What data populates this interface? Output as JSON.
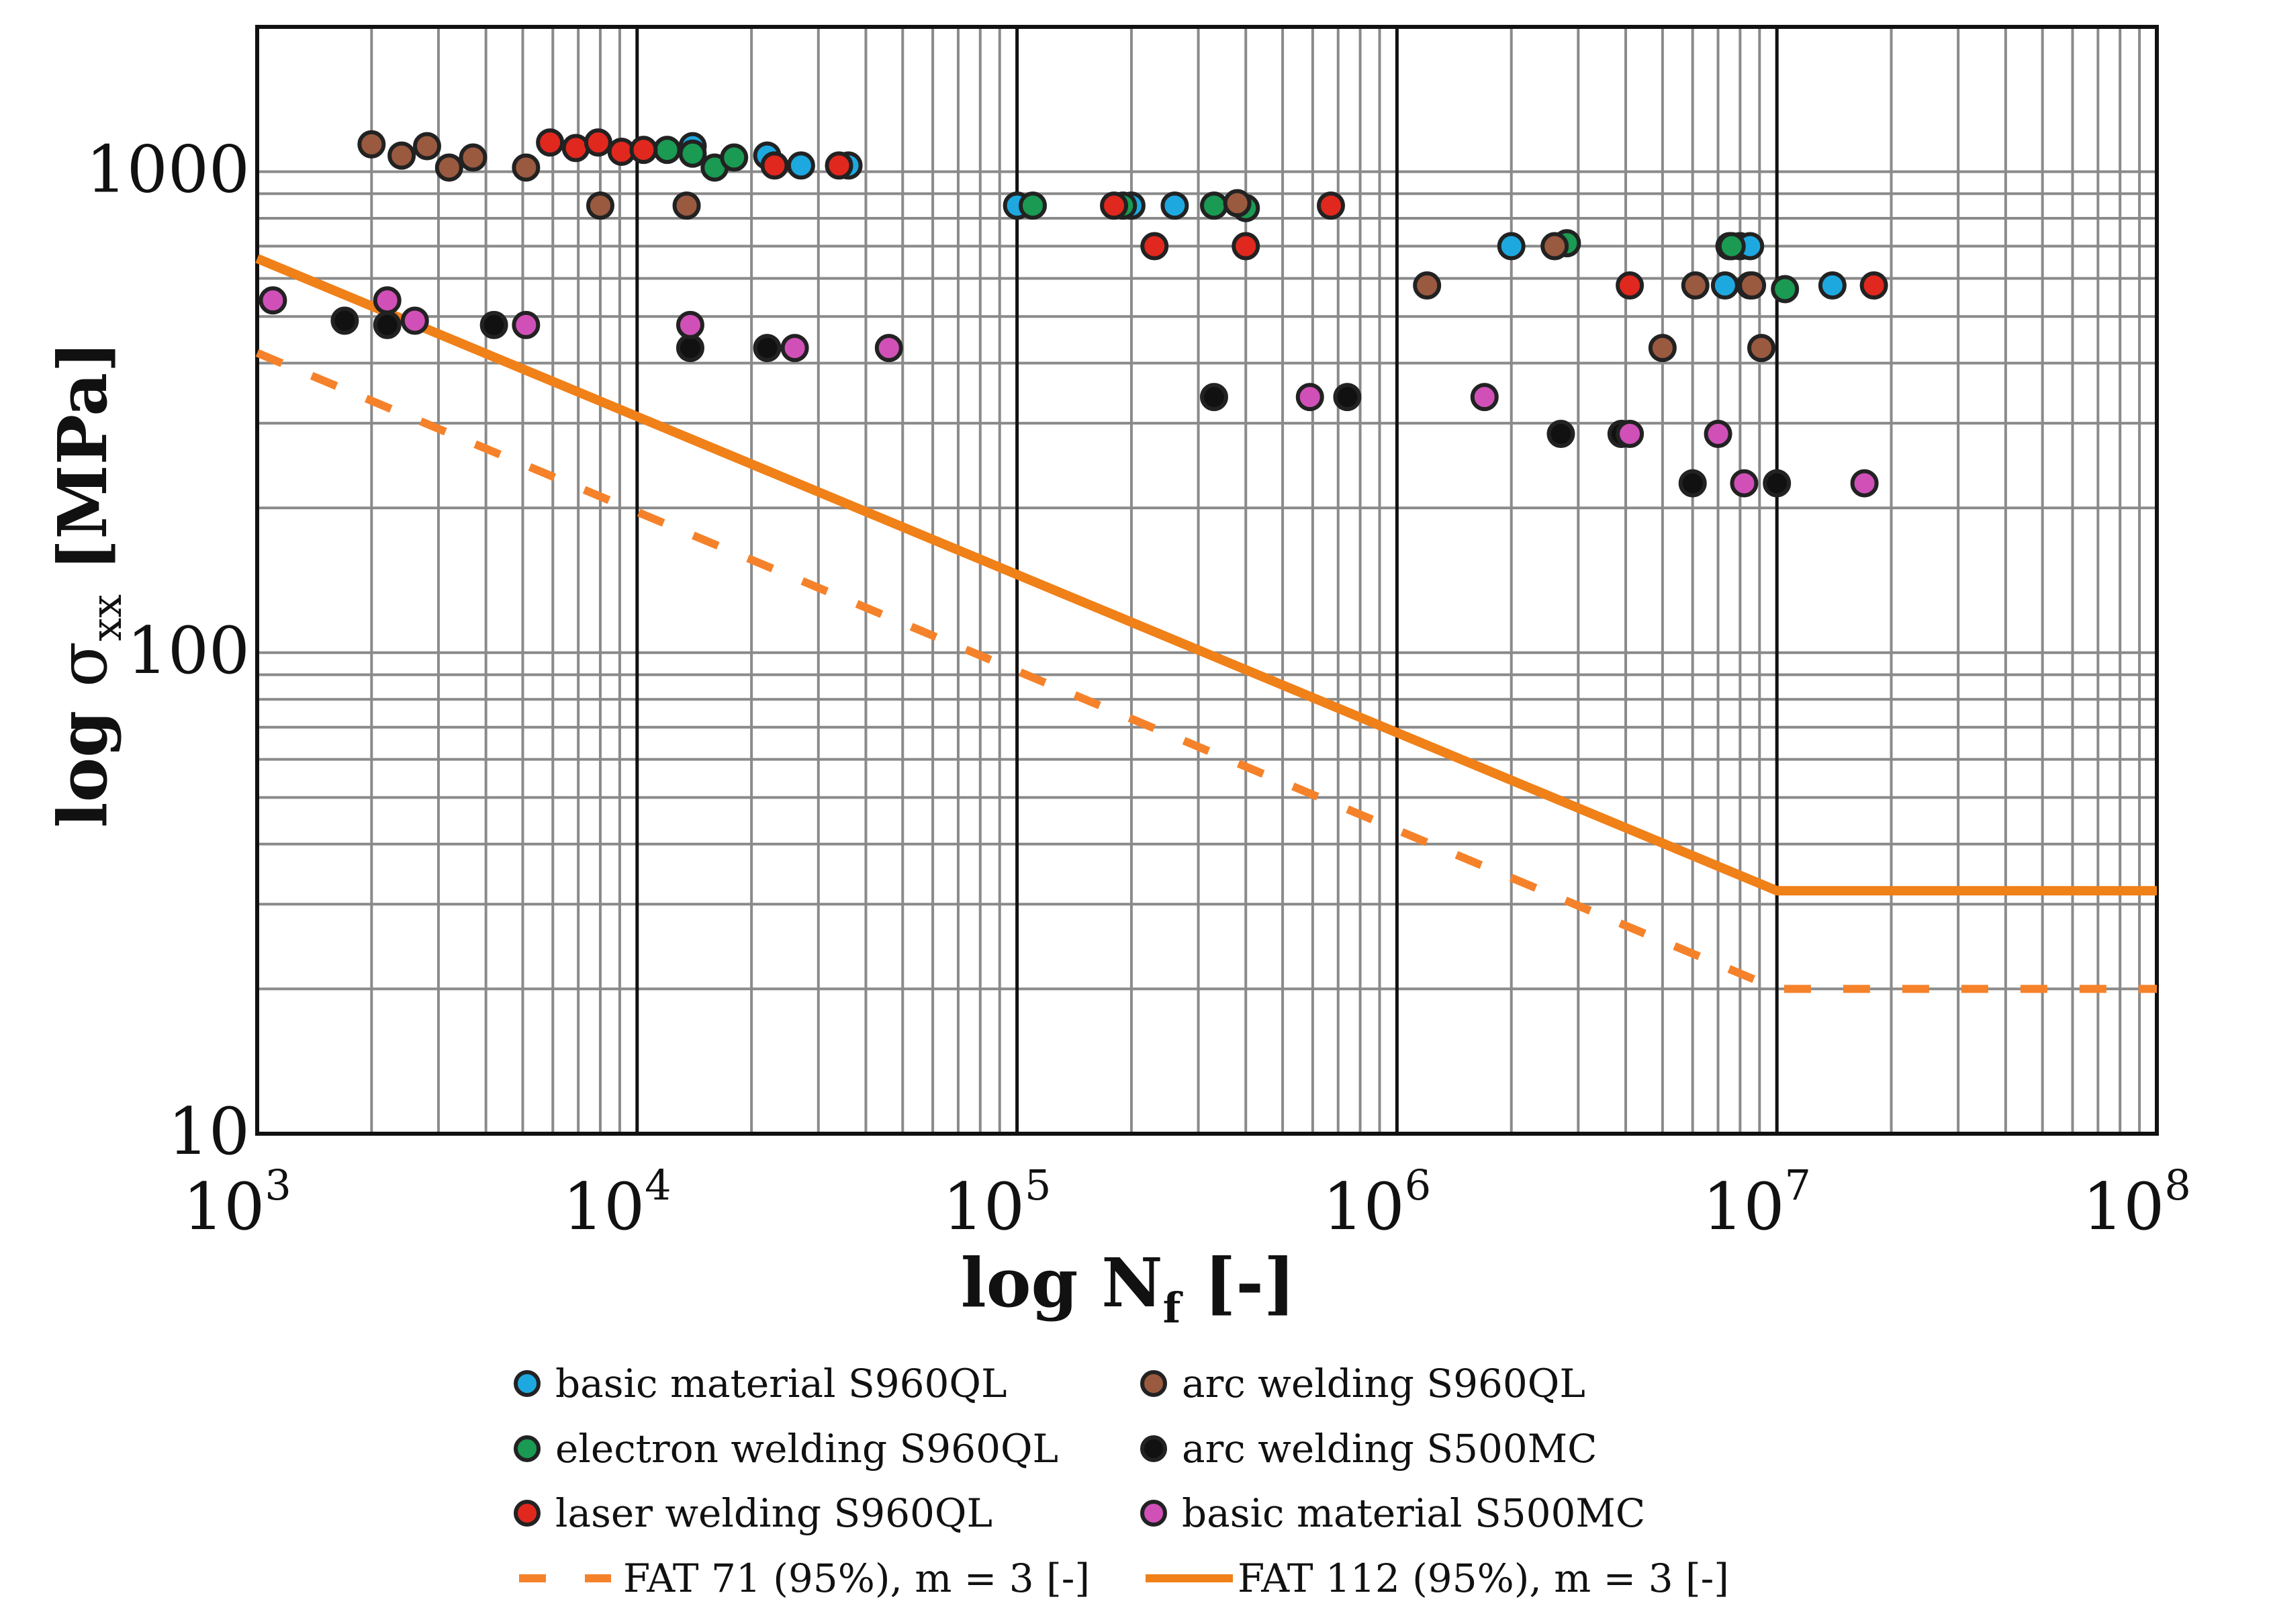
{
  "chart_data": {
    "type": "scatter",
    "title": "",
    "x_scale": "log",
    "y_scale": "log",
    "xlim": [
      1000,
      100000000
    ],
    "ylim": [
      10,
      2000
    ],
    "grid": true,
    "legend_position": "bottom",
    "xlabel": {
      "prefix": "log ",
      "symbol": "N",
      "subscript": "f",
      "suffix": " [-]"
    },
    "ylabel": {
      "prefix": "log ",
      "symbol": "σ",
      "subscript": "xx",
      "suffix": " [MPa]"
    },
    "x_ticks": [
      {
        "value": 1000,
        "base": "10",
        "exp": "3"
      },
      {
        "value": 10000,
        "base": "10",
        "exp": "4"
      },
      {
        "value": 100000,
        "base": "10",
        "exp": "5"
      },
      {
        "value": 1000000,
        "base": "10",
        "exp": "6"
      },
      {
        "value": 10000000,
        "base": "10",
        "exp": "7"
      },
      {
        "value": 100000000,
        "base": "10",
        "exp": "8"
      }
    ],
    "y_ticks": [
      {
        "value": 10,
        "label": "10"
      },
      {
        "value": 100,
        "label": "100"
      },
      {
        "value": 1000,
        "label": "1000"
      }
    ],
    "series": [
      {
        "name": "basic material S960QL",
        "color": "#1ea8e0",
        "marker": "circle",
        "points": [
          [
            14000,
            1130
          ],
          [
            22000,
            1080
          ],
          [
            27000,
            1030
          ],
          [
            36000,
            1030
          ],
          [
            100000,
            850
          ],
          [
            200000,
            850
          ],
          [
            260000,
            850
          ],
          [
            2000000,
            700
          ],
          [
            7300000,
            580
          ],
          [
            8000000,
            700
          ],
          [
            14000000,
            580
          ],
          [
            8500000,
            700
          ],
          [
            7500000,
            700
          ]
        ]
      },
      {
        "name": "electron welding S960QL",
        "color": "#1a9a52",
        "marker": "circle",
        "points": [
          [
            12000,
            1110
          ],
          [
            14000,
            1090
          ],
          [
            16000,
            1020
          ],
          [
            18000,
            1070
          ],
          [
            110000,
            850
          ],
          [
            190000,
            850
          ],
          [
            330000,
            850
          ],
          [
            400000,
            840
          ],
          [
            2800000,
            710
          ],
          [
            7600000,
            700
          ],
          [
            8500000,
            580
          ],
          [
            10500000,
            570
          ]
        ]
      },
      {
        "name": "laser welding S960QL",
        "color": "#e0281e",
        "marker": "circle",
        "points": [
          [
            5900,
            1150
          ],
          [
            6900,
            1120
          ],
          [
            7900,
            1150
          ],
          [
            9100,
            1100
          ],
          [
            10400,
            1110
          ],
          [
            23000,
            1030
          ],
          [
            34000,
            1030
          ],
          [
            180000,
            850
          ],
          [
            230000,
            700
          ],
          [
            400000,
            700
          ],
          [
            670000,
            850
          ],
          [
            4100000,
            580
          ],
          [
            18000000,
            580
          ]
        ]
      },
      {
        "name": "arc welding S960QL",
        "color": "#9a5a40",
        "marker": "circle",
        "points": [
          [
            2000,
            1140
          ],
          [
            2400,
            1080
          ],
          [
            2800,
            1130
          ],
          [
            3200,
            1020
          ],
          [
            3700,
            1070
          ],
          [
            5100,
            1020
          ],
          [
            8000,
            850
          ],
          [
            13500,
            850
          ],
          [
            380000,
            860
          ],
          [
            1200000,
            580
          ],
          [
            2600000,
            700
          ],
          [
            5000000,
            430
          ],
          [
            6100000,
            580
          ],
          [
            9100000,
            430
          ],
          [
            8600000,
            580
          ]
        ]
      },
      {
        "name": "arc welding S500MC",
        "color": "#111111",
        "marker": "circle",
        "points": [
          [
            1700,
            490
          ],
          [
            2200,
            480
          ],
          [
            4200,
            480
          ],
          [
            13800,
            430
          ],
          [
            22000,
            430
          ],
          [
            330000,
            340
          ],
          [
            740000,
            340
          ],
          [
            2700000,
            285
          ],
          [
            3900000,
            285
          ],
          [
            6000000,
            225
          ],
          [
            10000000,
            225
          ]
        ]
      },
      {
        "name": "basic material S500MC",
        "color": "#d050b8",
        "marker": "circle",
        "points": [
          [
            1100,
            540
          ],
          [
            2200,
            540
          ],
          [
            2600,
            490
          ],
          [
            5100,
            480
          ],
          [
            13800,
            480
          ],
          [
            26000,
            430
          ],
          [
            46000,
            430
          ],
          [
            590000,
            340
          ],
          [
            1700000,
            340
          ],
          [
            4100000,
            285
          ],
          [
            7000000,
            285
          ],
          [
            8200000,
            225
          ],
          [
            17000000,
            225
          ]
        ]
      }
    ],
    "lines": [
      {
        "name": "FAT 71 (95%), m = 3 [-]",
        "color": "#f5822a",
        "style": "dashed",
        "points": [
          [
            1000,
            420
          ],
          [
            10000000,
            20
          ],
          [
            100000000,
            20
          ]
        ]
      },
      {
        "name": "FAT 112 (95%), m = 3 [-]",
        "color": "#f08018",
        "style": "solid",
        "points": [
          [
            1000,
            660
          ],
          [
            10000000,
            32
          ],
          [
            100000000,
            32
          ]
        ]
      }
    ],
    "legend": [
      {
        "label": "basic material S960QL",
        "kind": "marker",
        "color": "#1ea8e0"
      },
      {
        "label": "arc welding S960QL",
        "kind": "marker",
        "color": "#9a5a40"
      },
      {
        "label": "electron welding S960QL",
        "kind": "marker",
        "color": "#1a9a52"
      },
      {
        "label": "arc welding S500MC",
        "kind": "marker",
        "color": "#111111"
      },
      {
        "label": "laser welding S960QL",
        "kind": "marker",
        "color": "#e0281e"
      },
      {
        "label": "basic material S500MC",
        "kind": "marker",
        "color": "#d050b8"
      },
      {
        "label": "FAT 71 (95%), m = 3 [-]",
        "kind": "dashed-line",
        "color": "#f5822a"
      },
      {
        "label": "FAT 112 (95%), m = 3 [-]",
        "kind": "solid-line",
        "color": "#f08018"
      }
    ]
  }
}
